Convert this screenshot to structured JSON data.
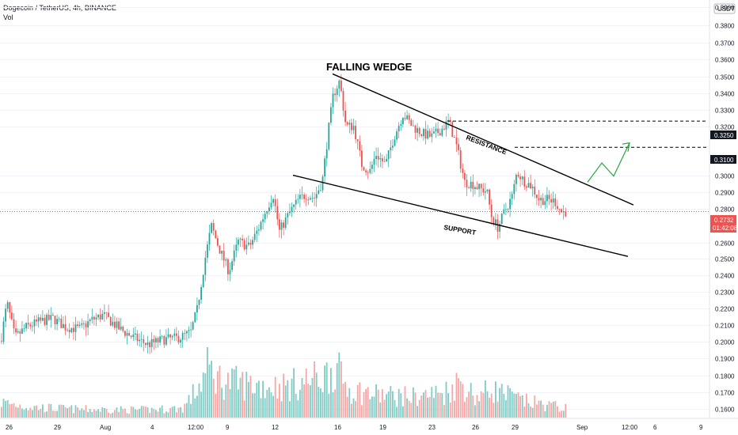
{
  "header": {
    "symbol": "Dogecoin / TetherUS, 4h, BINANCE",
    "volume_label": "Vol",
    "currency": "USDT"
  },
  "annotations": {
    "title": "FALLING WEDGE",
    "resistance": "RESISTANCE",
    "support": "SUPPORT"
  },
  "levels": {
    "upper": "0.3250",
    "lower": "0.3100",
    "current_price": "0.2732",
    "countdown": "01:42:08"
  },
  "colors": {
    "up": "#26a69a",
    "down": "#ef5350",
    "up_vol": "#80cbc4",
    "down_vol": "#f7a6a5",
    "arrow": "#26a83c",
    "current": "#ef5350"
  },
  "chart_data": {
    "type": "candlestick",
    "title": "FALLING WEDGE",
    "y_ticks": [
      "0.3900",
      "0.3800",
      "0.3700",
      "0.3600",
      "0.3500",
      "0.3400",
      "0.3300",
      "0.3200",
      "0.3000",
      "0.2900",
      "0.2800",
      "0.2600",
      "0.2500",
      "0.2400",
      "0.2300",
      "0.2200",
      "0.2100",
      "0.2000",
      "0.1900",
      "0.1800",
      "0.1700",
      "0.1600"
    ],
    "ylim": [
      0.158,
      0.393
    ],
    "x_ticks": [
      "26",
      "29",
      "Aug",
      "4",
      "12:00",
      "9",
      "12",
      "16",
      "19",
      "23",
      "26",
      "29",
      "Sep",
      "12:00",
      "6",
      "9"
    ],
    "price_path": [
      [
        0,
        0.199
      ],
      [
        8,
        0.221
      ],
      [
        18,
        0.201
      ],
      [
        32,
        0.207
      ],
      [
        48,
        0.21
      ],
      [
        66,
        0.212
      ],
      [
        82,
        0.207
      ],
      [
        100,
        0.206
      ],
      [
        114,
        0.211
      ],
      [
        130,
        0.214
      ],
      [
        150,
        0.206
      ],
      [
        168,
        0.201
      ],
      [
        186,
        0.197
      ],
      [
        206,
        0.2
      ],
      [
        226,
        0.201
      ],
      [
        240,
        0.204
      ],
      [
        248,
        0.217
      ],
      [
        258,
        0.246
      ],
      [
        266,
        0.265
      ],
      [
        276,
        0.252
      ],
      [
        288,
        0.239
      ],
      [
        300,
        0.256
      ],
      [
        314,
        0.253
      ],
      [
        326,
        0.264
      ],
      [
        336,
        0.275
      ],
      [
        344,
        0.283
      ],
      [
        352,
        0.262
      ],
      [
        364,
        0.272
      ],
      [
        376,
        0.28
      ],
      [
        386,
        0.283
      ],
      [
        396,
        0.281
      ],
      [
        406,
        0.29
      ],
      [
        414,
        0.32
      ],
      [
        420,
        0.34
      ],
      [
        428,
        0.348
      ],
      [
        436,
        0.322
      ],
      [
        446,
        0.322
      ],
      [
        456,
        0.3
      ],
      [
        466,
        0.296
      ],
      [
        474,
        0.306
      ],
      [
        486,
        0.3
      ],
      [
        496,
        0.315
      ],
      [
        508,
        0.329
      ],
      [
        520,
        0.322
      ],
      [
        532,
        0.318
      ],
      [
        544,
        0.316
      ],
      [
        556,
        0.32
      ],
      [
        566,
        0.325
      ],
      [
        576,
        0.31
      ],
      [
        586,
        0.29
      ],
      [
        596,
        0.289
      ],
      [
        606,
        0.286
      ],
      [
        614,
        0.285
      ],
      [
        620,
        0.27
      ],
      [
        628,
        0.264
      ],
      [
        636,
        0.273
      ],
      [
        646,
        0.282
      ],
      [
        652,
        0.296
      ],
      [
        660,
        0.291
      ],
      [
        670,
        0.288
      ],
      [
        680,
        0.28
      ],
      [
        690,
        0.28
      ],
      [
        700,
        0.279
      ],
      [
        708,
        0.273
      ],
      [
        716,
        0.273
      ]
    ],
    "volume_profile": [
      [
        0,
        0.3
      ],
      [
        40,
        0.2
      ],
      [
        100,
        0.16
      ],
      [
        180,
        0.15
      ],
      [
        230,
        0.18
      ],
      [
        248,
        0.55
      ],
      [
        262,
        0.95
      ],
      [
        280,
        0.7
      ],
      [
        330,
        0.62
      ],
      [
        360,
        0.6
      ],
      [
        390,
        0.72
      ],
      [
        410,
        0.8
      ],
      [
        420,
        1.0
      ],
      [
        440,
        0.55
      ],
      [
        470,
        0.45
      ],
      [
        520,
        0.4
      ],
      [
        560,
        0.48
      ],
      [
        580,
        0.7
      ],
      [
        600,
        0.4
      ],
      [
        620,
        0.55
      ],
      [
        660,
        0.32
      ],
      [
        716,
        0.18
      ]
    ],
    "wedge": {
      "resistance": [
        [
          46.0,
          0.354
        ],
        [
          125.0,
          0.28
        ]
      ],
      "support": [
        [
          0.0,
          0.295
        ],
        [
          125.0,
          0.248
        ]
      ]
    },
    "projection": [
      [
        0.2875,
        0.31
      ],
      "up"
    ]
  }
}
